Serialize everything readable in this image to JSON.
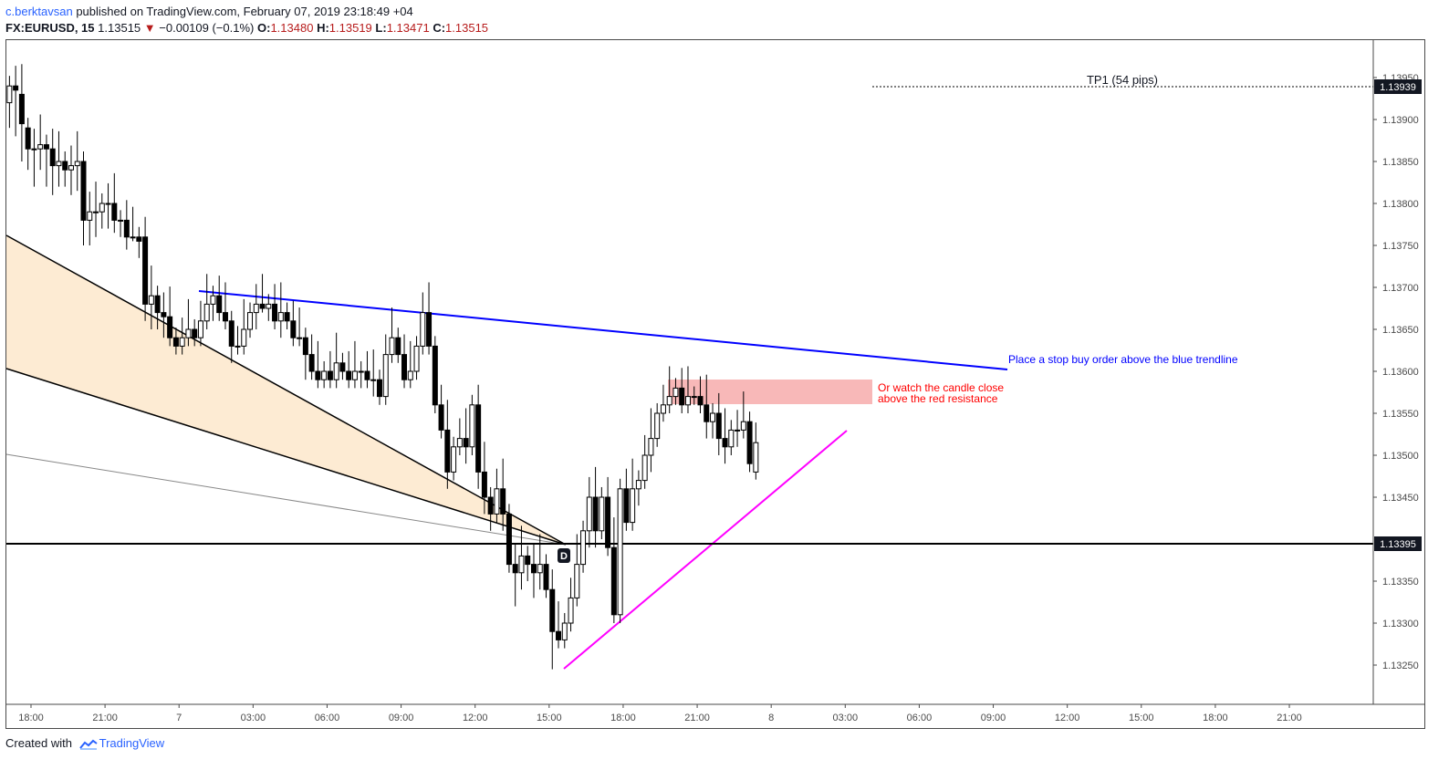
{
  "header": {
    "author": "c.berktavsan",
    "published": " published on TradingView.com, February 07, 2019 23:18:49 +04",
    "symbol": "FX:EURUSD, 15",
    "last": "1.13515",
    "arrow": "▼",
    "change": "−0.00109 (−0.1%)",
    "o_label": "O:",
    "o_value": "1.13480",
    "h_label": "H:",
    "h_value": "1.13519",
    "l_label": "L:",
    "l_value": "1.13471",
    "c_label": "C:",
    "c_value": "1.13515"
  },
  "footer": {
    "created": "Created with",
    "brand": "TradingView"
  },
  "colors": {
    "up_candle": "#ffffff",
    "down_candle": "#000000",
    "blue_trendline": "#0000ff",
    "magenta_trendline": "#ff00ff",
    "resistance_zone": "#f8b8b8",
    "fan_fill": "#fdebd3",
    "annotation_blue": "#0000ff",
    "annotation_red": "#ff0000"
  },
  "chart_data": {
    "type": "candlestick",
    "title": "",
    "xlabel": "",
    "ylabel": "",
    "grid": false,
    "ylim": [
      1.1321,
      1.13975
    ],
    "y_ticks": [
      "1.13950",
      "1.13900",
      "1.13850",
      "1.13800",
      "1.13750",
      "1.13700",
      "1.13650",
      "1.13600",
      "1.13550",
      "1.13500",
      "1.13450",
      "1.13350",
      "1.13300",
      "1.13250"
    ],
    "x_ticks": [
      {
        "label": "18:00",
        "bar": 11
      },
      {
        "label": "21:00",
        "bar": 23
      },
      {
        "label": "7",
        "bar": 35
      },
      {
        "label": "03:00",
        "bar": 47
      },
      {
        "label": "06:00",
        "bar": 59
      },
      {
        "label": "09:00",
        "bar": 71
      },
      {
        "label": "12:00",
        "bar": 83
      },
      {
        "label": "15:00",
        "bar": 95
      },
      {
        "label": "18:00",
        "bar": 107
      },
      {
        "label": "21:00",
        "bar": 119
      },
      {
        "label": "8",
        "bar": 131
      },
      {
        "label": "03:00",
        "bar": 143
      },
      {
        "label": "06:00",
        "bar": 155
      },
      {
        "label": "09:00",
        "bar": 167
      },
      {
        "label": "12:00",
        "bar": 179
      },
      {
        "label": "15:00",
        "bar": 191
      },
      {
        "label": "18:00",
        "bar": 203
      },
      {
        "label": "21:00",
        "bar": 215
      }
    ],
    "bar_origin": 7.6,
    "candles": [
      [
        1.1392,
        1.1394,
        1.1389
      ],
      [
        1.1394,
        1.13935,
        1.1388
      ],
      [
        1.1393,
        1.13895,
        1.1385
      ],
      [
        1.1389,
        1.13865,
        1.1384
      ],
      [
        1.13865,
        1.13865,
        1.1382
      ],
      [
        1.13865,
        1.1387,
        1.1384
      ],
      [
        1.1387,
        1.13865,
        1.1382
      ],
      [
        1.13865,
        1.13845,
        1.1381
      ],
      [
        1.13845,
        1.1385,
        1.1382
      ],
      [
        1.1385,
        1.1384,
        1.1382
      ],
      [
        1.1384,
        1.13845,
        1.1381
      ],
      [
        1.13845,
        1.1385,
        1.13815
      ],
      [
        1.1385,
        1.1378,
        1.1375
      ],
      [
        1.1378,
        1.1379,
        1.1375
      ],
      [
        1.1379,
        1.1379,
        1.1376
      ],
      [
        1.1379,
        1.138,
        1.1377
      ],
      [
        1.138,
        1.138,
        1.1377
      ],
      [
        1.138,
        1.1378,
        1.13765
      ],
      [
        1.1378,
        1.1378,
        1.1376
      ],
      [
        1.1378,
        1.1376,
        1.13745
      ],
      [
        1.1376,
        1.1376,
        1.13755
      ],
      [
        1.1376,
        1.13755,
        1.13735
      ],
      [
        1.1376,
        1.1368,
        1.1366
      ],
      [
        1.1368,
        1.1369,
        1.1365
      ],
      [
        1.1369,
        1.1367,
        1.1365
      ],
      [
        1.1367,
        1.13665,
        1.1364
      ],
      [
        1.13665,
        1.1364,
        1.1363
      ],
      [
        1.1364,
        1.1363,
        1.1362
      ],
      [
        1.1363,
        1.1364,
        1.1362
      ],
      [
        1.1364,
        1.1365,
        1.1363
      ],
      [
        1.1365,
        1.1364,
        1.1363
      ],
      [
        1.1364,
        1.1366,
        1.1363
      ],
      [
        1.1366,
        1.1368,
        1.1365
      ],
      [
        1.1368,
        1.1369,
        1.1366
      ],
      [
        1.1369,
        1.1367,
        1.1366
      ],
      [
        1.1367,
        1.1366,
        1.1365
      ],
      [
        1.1366,
        1.1363,
        1.1361
      ],
      [
        1.1363,
        1.1363,
        1.1362
      ],
      [
        1.1363,
        1.1365,
        1.1362
      ],
      [
        1.1365,
        1.1367,
        1.1364
      ],
      [
        1.1367,
        1.1368,
        1.1365
      ],
      [
        1.1368,
        1.13675,
        1.1367
      ],
      [
        1.13675,
        1.1368,
        1.1366
      ],
      [
        1.1368,
        1.1366,
        1.1365
      ],
      [
        1.1366,
        1.1367,
        1.1364
      ],
      [
        1.1367,
        1.1366,
        1.1365
      ],
      [
        1.1366,
        1.1364,
        1.1363
      ],
      [
        1.1364,
        1.1364,
        1.1363
      ],
      [
        1.1364,
        1.1362,
        1.1359
      ],
      [
        1.1362,
        1.136,
        1.1359
      ],
      [
        1.136,
        1.1359,
        1.1358
      ],
      [
        1.1359,
        1.136,
        1.1358
      ],
      [
        1.136,
        1.1359,
        1.1358
      ],
      [
        1.1359,
        1.1361,
        1.1358
      ],
      [
        1.1361,
        1.136,
        1.1359
      ],
      [
        1.136,
        1.1359,
        1.1358
      ],
      [
        1.1359,
        1.136,
        1.1358
      ],
      [
        1.136,
        1.136,
        1.1358
      ],
      [
        1.136,
        1.1359,
        1.1358
      ],
      [
        1.1359,
        1.1359,
        1.1357
      ],
      [
        1.1359,
        1.1357,
        1.1356
      ],
      [
        1.1357,
        1.1362,
        1.1356
      ],
      [
        1.1362,
        1.1364,
        1.1361
      ],
      [
        1.1364,
        1.1362,
        1.1361
      ],
      [
        1.1362,
        1.1359,
        1.1358
      ],
      [
        1.1359,
        1.136,
        1.1358
      ],
      [
        1.136,
        1.1363,
        1.1359
      ],
      [
        1.1363,
        1.1367,
        1.1362
      ],
      [
        1.1367,
        1.1363,
        1.1362
      ],
      [
        1.1363,
        1.1356,
        1.1355
      ],
      [
        1.1356,
        1.1353,
        1.1352
      ],
      [
        1.1353,
        1.1348,
        1.1346
      ],
      [
        1.1348,
        1.1351,
        1.1347
      ],
      [
        1.1351,
        1.1352,
        1.135
      ],
      [
        1.1352,
        1.1351,
        1.1349
      ],
      [
        1.1351,
        1.1356,
        1.135
      ],
      [
        1.1356,
        1.1348,
        1.1346
      ],
      [
        1.1348,
        1.1345,
        1.1343
      ],
      [
        1.1345,
        1.1343,
        1.1341
      ],
      [
        1.1343,
        1.1346,
        1.1342
      ],
      [
        1.1346,
        1.1343,
        1.1341
      ],
      [
        1.1343,
        1.1337,
        1.1336
      ],
      [
        1.1337,
        1.1336,
        1.1332
      ],
      [
        1.1336,
        1.1338,
        1.1334
      ],
      [
        1.1338,
        1.1337,
        1.1335
      ],
      [
        1.1337,
        1.1336,
        1.1333
      ],
      [
        1.1336,
        1.1337,
        1.1334
      ],
      [
        1.1337,
        1.1334,
        1.1333
      ],
      [
        1.1334,
        1.1329,
        1.13245
      ],
      [
        1.1329,
        1.1328,
        1.1327
      ],
      [
        1.1328,
        1.133,
        1.1327
      ],
      [
        1.133,
        1.1333,
        1.1329
      ],
      [
        1.1333,
        1.1337,
        1.1332
      ],
      [
        1.1337,
        1.1341,
        1.1336
      ],
      [
        1.1341,
        1.1345,
        1.1339
      ],
      [
        1.1345,
        1.1341,
        1.1339
      ],
      [
        1.1341,
        1.1345,
        1.134
      ],
      [
        1.1345,
        1.1339,
        1.1338
      ],
      [
        1.1339,
        1.1331,
        1.133
      ],
      [
        1.1331,
        1.1346,
        1.133
      ],
      [
        1.1346,
        1.1342,
        1.1341
      ],
      [
        1.1342,
        1.1346,
        1.1341
      ],
      [
        1.1346,
        1.1347,
        1.1344
      ],
      [
        1.1347,
        1.135,
        1.1346
      ],
      [
        1.135,
        1.1352,
        1.1348
      ],
      [
        1.1352,
        1.1355,
        1.1351
      ],
      [
        1.1355,
        1.1356,
        1.1354
      ],
      [
        1.1356,
        1.1357,
        1.1355
      ],
      [
        1.1357,
        1.1358,
        1.1356
      ],
      [
        1.1358,
        1.1356,
        1.1355
      ],
      [
        1.1356,
        1.1357,
        1.1355
      ],
      [
        1.1357,
        1.1357,
        1.1356
      ],
      [
        1.1357,
        1.1356,
        1.1355
      ],
      [
        1.1356,
        1.1354,
        1.1352
      ],
      [
        1.1354,
        1.1355,
        1.1352
      ],
      [
        1.1355,
        1.1352,
        1.135
      ],
      [
        1.1352,
        1.1351,
        1.1349
      ],
      [
        1.1351,
        1.1353,
        1.135
      ],
      [
        1.1353,
        1.1353,
        1.1351
      ],
      [
        1.1353,
        1.1354,
        1.1352
      ],
      [
        1.1354,
        1.1349,
        1.1348
      ],
      [
        1.1348,
        1.13515,
        1.13471
      ]
    ],
    "candles_encoding": "each candle is [open, close, low]; high is taken from the chart's wick tops where they differ"
  },
  "chart": {
    "price_axis": {
      "tp1_price": "1.13939",
      "level_price": "1.13395"
    },
    "tp1_label": "TP1  (54 pips)",
    "fan_marker": "D",
    "annotations": {
      "blue": "Place a stop buy order above the blue trendline",
      "red_line1": "Or watch the candle close",
      "red_line2": "above the red resistance"
    }
  }
}
